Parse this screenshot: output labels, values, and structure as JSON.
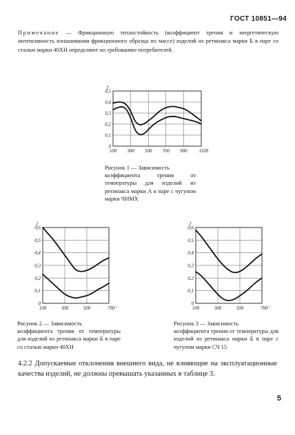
{
  "header": {
    "text": "ГОСТ 10851—94"
  },
  "note": {
    "prefix": "Примечание",
    "text": " — Фрикционную теплостойкость (коэффициент трения и энергетическую интенсивность изнашивания фрикционного образца по массе) изделий из ретинакса марки Б в паре со сталью марки 40ХН определяют по требованию потребителей."
  },
  "chart_data": [
    {
      "type": "line",
      "ylabel": "f",
      "xlabel": "t, °C",
      "x_tick_labels": [
        "100",
        "300",
        "500",
        "700",
        "900",
        "1100 °C"
      ],
      "y_tick_labels": [
        "0",
        "0,1",
        "0,2",
        "0,3",
        "0,4",
        "0,5"
      ],
      "xlim": [
        100,
        1100
      ],
      "ylim": [
        0,
        0.5
      ],
      "series": [
        {
          "x": [
            100,
            150,
            200,
            250,
            300,
            350,
            400,
            450,
            500,
            550,
            600,
            650,
            700,
            750,
            800,
            850,
            900,
            950,
            1000,
            1050,
            1100
          ],
          "y": [
            0.39,
            0.4,
            0.4,
            0.38,
            0.32,
            0.22,
            0.19,
            0.2,
            0.23,
            0.26,
            0.3,
            0.33,
            0.35,
            0.36,
            0.36,
            0.35,
            0.34,
            0.32,
            0.29,
            0.26,
            0.23
          ]
        },
        {
          "x": [
            100,
            150,
            200,
            250,
            300,
            350,
            400,
            450,
            500,
            550,
            600,
            650,
            700,
            750,
            800,
            850,
            900,
            950,
            1000,
            1050,
            1100
          ],
          "y": [
            0.33,
            0.35,
            0.36,
            0.34,
            0.26,
            0.14,
            0.1,
            0.11,
            0.15,
            0.19,
            0.22,
            0.24,
            0.26,
            0.27,
            0.27,
            0.26,
            0.25,
            0.24,
            0.23,
            0.22,
            0.2
          ]
        }
      ]
    },
    {
      "type": "line",
      "ylabel": "f",
      "xlabel": "t, °C",
      "x_tick_labels": [
        "100",
        "300",
        "500",
        "700 °C"
      ],
      "y_tick_labels": [
        "0",
        "0,1",
        "0,2",
        "0,3",
        "0,4",
        "0,5",
        "0,6"
      ],
      "xlim": [
        100,
        700
      ],
      "ylim": [
        0,
        0.6
      ],
      "series": [
        {
          "x": [
            100,
            150,
            200,
            250,
            300,
            350,
            400,
            450,
            500,
            550,
            600,
            650,
            700
          ],
          "y": [
            0.6,
            0.55,
            0.5,
            0.44,
            0.38,
            0.32,
            0.26,
            0.25,
            0.26,
            0.28,
            0.31,
            0.34,
            0.36
          ]
        },
        {
          "x": [
            100,
            150,
            200,
            250,
            300,
            350,
            400,
            450,
            500,
            550,
            600,
            650,
            700
          ],
          "y": [
            0.23,
            0.19,
            0.15,
            0.11,
            0.07,
            0.05,
            0.04,
            0.05,
            0.06,
            0.08,
            0.11,
            0.13,
            0.16
          ]
        }
      ]
    },
    {
      "type": "line",
      "ylabel": "f",
      "xlabel": "t, °C",
      "x_tick_labels": [
        "100",
        "300",
        "500",
        "700 °C"
      ],
      "y_tick_labels": [
        "0",
        "0,1",
        "0,2",
        "0,3",
        "0,4",
        "0,5",
        "0,6"
      ],
      "xlim": [
        100,
        700
      ],
      "ylim": [
        0,
        0.6
      ],
      "series": [
        {
          "x": [
            100,
            150,
            200,
            250,
            300,
            350,
            400,
            450,
            500,
            550,
            600,
            650,
            700
          ],
          "y": [
            0.58,
            0.53,
            0.47,
            0.41,
            0.35,
            0.3,
            0.26,
            0.24,
            0.25,
            0.28,
            0.32,
            0.36,
            0.39
          ]
        },
        {
          "x": [
            100,
            150,
            200,
            250,
            300,
            350,
            400,
            450,
            500,
            550,
            600,
            650,
            700
          ],
          "y": [
            0.25,
            0.22,
            0.17,
            0.12,
            0.07,
            0.03,
            0.02,
            0.03,
            0.06,
            0.09,
            0.13,
            0.17,
            0.2
          ]
        }
      ]
    }
  ],
  "figures": [
    {
      "caption_title": "Рисунок 1 — Зависимость",
      "caption_body": "коэффициента трения от температуры для изделий из ретинакса марки А в паре с чугуном марки ЧНМХ"
    },
    {
      "caption_title": "Рисунок 2 — Зависимость",
      "caption_body": "коэффициента трения от температуры для изделий из ретинакса марки Б в паре со сталью марки 40ХН"
    },
    {
      "caption_title": "Рисунок 3 — Зависимость",
      "caption_body": "коэффициента трения от температуры для изделий из ретинакса марки Б в паре с чугуном марки СЧ 15"
    }
  ],
  "paragraph": {
    "text": "4.2.2 Допускаемые отклонения внешнего вида, не влияющие на эксплуатационные качества изделий, не должны превышать указанных в таблице 3."
  },
  "page_number": "5"
}
